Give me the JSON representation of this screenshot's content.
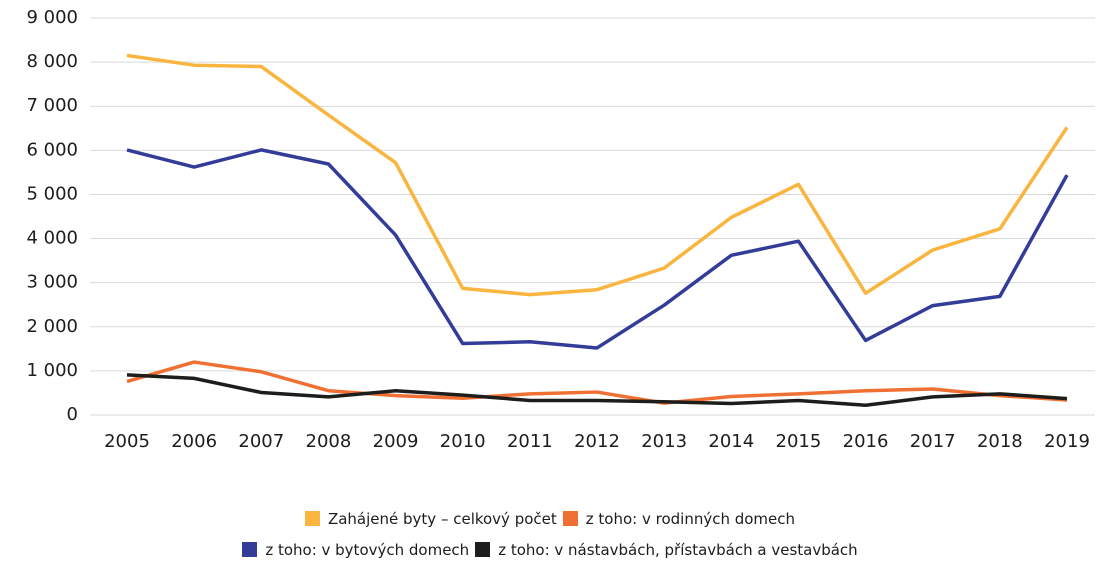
{
  "chart_data": {
    "type": "line",
    "categories": [
      "2005",
      "2006",
      "2007",
      "2008",
      "2009",
      "2010",
      "2011",
      "2012",
      "2013",
      "2014",
      "2015",
      "2016",
      "2017",
      "2018",
      "2019"
    ],
    "series": [
      {
        "name": "Zahájené byty – celkový počet",
        "color": "#f9b53f",
        "values": [
          8150,
          7930,
          7900,
          6800,
          5720,
          2870,
          2730,
          2840,
          3330,
          4480,
          5230,
          2760,
          3740,
          4220,
          6520
        ]
      },
      {
        "name": "z toho: v rodinných domech",
        "color": "#f07033",
        "values": [
          760,
          1200,
          980,
          550,
          440,
          380,
          480,
          520,
          270,
          420,
          480,
          550,
          590,
          440,
          340
        ]
      },
      {
        "name": "z toho: v bytových domech",
        "color": "#333d99",
        "values": [
          6010,
          5620,
          6010,
          5690,
          4080,
          1620,
          1660,
          1520,
          2490,
          3620,
          3940,
          1690,
          2480,
          2690,
          5440
        ]
      },
      {
        "name": "z toho: v nástavbách, přístavbách a vestavbách",
        "color": "#1d1d1b",
        "values": [
          910,
          830,
          510,
          410,
          550,
          450,
          330,
          330,
          300,
          260,
          330,
          220,
          410,
          480,
          370
        ]
      }
    ],
    "ylim": [
      0,
      9000
    ],
    "yticks": [
      0,
      {
        "value": 1000,
        "label": "1 000"
      },
      {
        "value": 2000,
        "label": "2 000"
      },
      {
        "value": 3000,
        "label": "3 000"
      },
      {
        "value": 4000,
        "label": "4 000"
      },
      {
        "value": 5000,
        "label": "5 000"
      },
      {
        "value": 6000,
        "label": "6 000"
      },
      {
        "value": 7000,
        "label": "7 000"
      },
      {
        "value": 8000,
        "label": "8 000"
      },
      {
        "value": 9000,
        "label": "9 000"
      }
    ],
    "grid": true,
    "legend": "bottom"
  }
}
